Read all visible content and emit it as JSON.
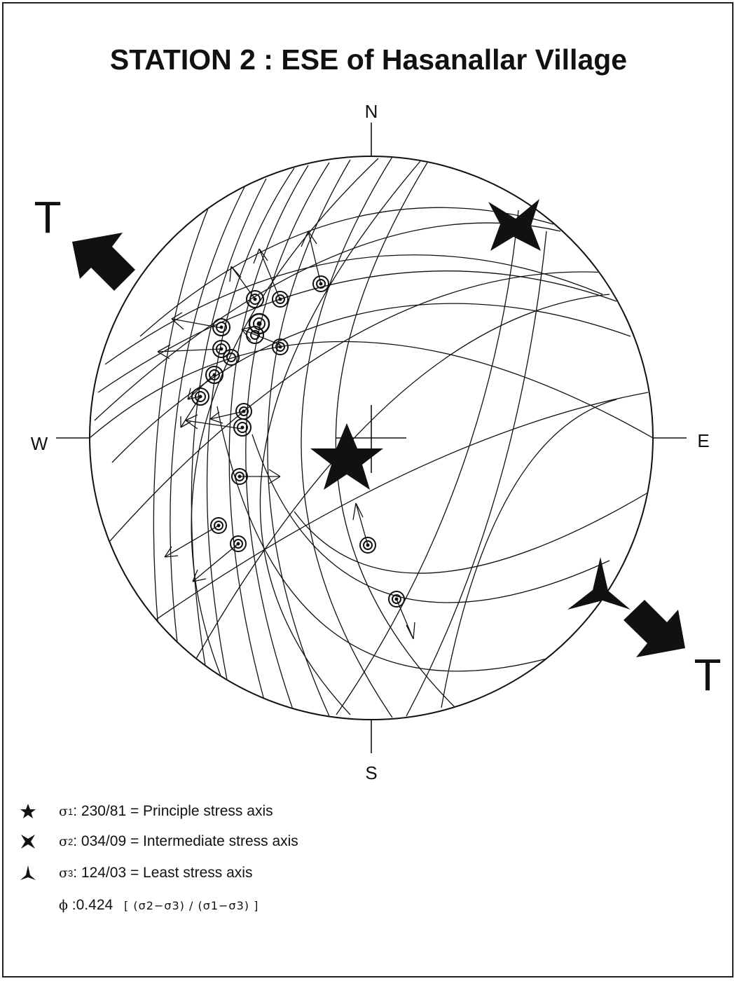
{
  "title": "STATION 2 : ESE of Hasanallar Village",
  "directions": {
    "n": "N",
    "s": "S",
    "e": "E",
    "w": "W"
  },
  "tension_label_nw": "T",
  "tension_label_se": "T",
  "legend": [
    {
      "icon": "five-point-star",
      "symbol": "σ",
      "sub": "1",
      "text": ": 230/81 = Principle stress axis"
    },
    {
      "icon": "four-point-star",
      "symbol": "σ",
      "sub": "2",
      "text": ": 034/09 = Intermediate stress axis"
    },
    {
      "icon": "three-point-star",
      "symbol": "σ",
      "sub": "3",
      "text": ": 124/03 = Least stress axis"
    }
  ],
  "phi": {
    "symbol": "ϕ",
    "value": ":0.424",
    "formula": "[ (σ2−σ3) / (σ1−σ3) ]"
  },
  "stress_axes": {
    "sigma1": {
      "trend": 230,
      "plunge": 81
    },
    "sigma2": {
      "trend": 34,
      "plunge": 9
    },
    "sigma3": {
      "trend": 124,
      "plunge": 3
    }
  },
  "colors": {
    "ink": "#111111",
    "background": "#ffffff"
  }
}
